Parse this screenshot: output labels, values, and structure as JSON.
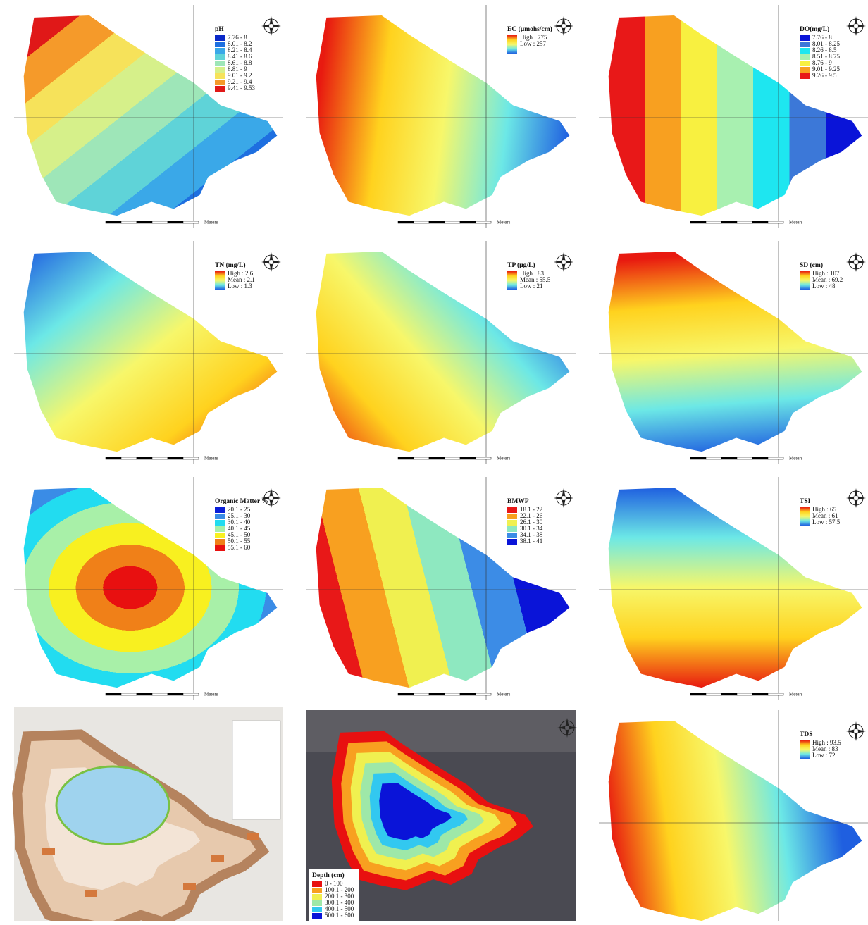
{
  "panels": [
    {
      "title": "pH",
      "legend": [
        "7.76 - 8",
        "8.01 - 8.2",
        "8.21 - 8.4",
        "8.41 - 8.6",
        "8.61 - 8.8",
        "8.81 - 9",
        "9.01 - 9.2",
        "9.21 - 9.4",
        "9.41 - 9.53"
      ],
      "colors": [
        "#0a28c8",
        "#1e6fe0",
        "#3aa8e8",
        "#5fd3d8",
        "#9ee6b8",
        "#d6f08a",
        "#f6e25a",
        "#f59a2a",
        "#e01818"
      ]
    },
    {
      "title": "EC (µmohs/cm)",
      "legend": [
        "High : 775",
        "Low : 257"
      ],
      "colors": [
        "#e81a10",
        "#ffd21e",
        "#f7f76a",
        "#6ce8e6",
        "#1f5fe0"
      ]
    },
    {
      "title": "DO(mg/L)",
      "legend": [
        "7.76 - 8",
        "8.01 - 8.25",
        "8.26 - 8.5",
        "8.51 - 8.75",
        "8.76 - 9",
        "9.01 - 9.25",
        "9.26 - 9.5"
      ],
      "colors": [
        "#0a14d8",
        "#3c78d8",
        "#1ee6f0",
        "#a8f0b0",
        "#f8f040",
        "#f8a020",
        "#e81818"
      ]
    },
    {
      "title": "TN (mg/L)",
      "legend": [
        "High : 2.6",
        "Mean : 2.1",
        "Low : 1.3"
      ],
      "colors": [
        "#e81a10",
        "#ffd21e",
        "#f7f76a",
        "#6ce8e6",
        "#1f5fe0"
      ]
    },
    {
      "title": "TP (µg/L)",
      "legend": [
        "High : 83",
        "Mean : 55.5",
        "Low : 21"
      ],
      "colors": [
        "#e81a10",
        "#ffd21e",
        "#f7f76a",
        "#6ce8e6",
        "#1f5fe0"
      ]
    },
    {
      "title": "SD (cm)",
      "legend": [
        "High : 107",
        "Mean : 69.2",
        "Low : 48"
      ],
      "colors": [
        "#e81a10",
        "#ffd21e",
        "#f7f76a",
        "#6ce8e6",
        "#1f5fe0"
      ]
    },
    {
      "title": "Organic Matter %",
      "legend": [
        "20.1 - 25",
        "25.1 - 30",
        "30.1 - 40",
        "40.1 - 45",
        "45.1 - 50",
        "50.1 - 55",
        "55.1 - 60"
      ],
      "colors": [
        "#0a1ed8",
        "#3a8ce6",
        "#22dcf0",
        "#a8f0a8",
        "#f8f020",
        "#f08018",
        "#e81010"
      ]
    },
    {
      "title": "BMWP",
      "legend": [
        "18.1 - 22",
        "22.1 - 26",
        "26.1 - 30",
        "30.1 - 34",
        "34.1 - 38",
        "38.1 - 41"
      ],
      "colors": [
        "#e81818",
        "#f8a020",
        "#f0f050",
        "#8ee8c0",
        "#3c8ce6",
        "#0a14d8"
      ]
    },
    {
      "title": "TSI",
      "legend": [
        "High : 65",
        "Mean : 61",
        "Low : 57.5"
      ],
      "colors": [
        "#e81a10",
        "#ffd21e",
        "#f7f76a",
        "#6ce8e6",
        "#1f5fe0"
      ]
    },
    {
      "colors": [
        "#b5835e",
        "#e7c9ad",
        "#f3e4d6",
        "#9fd3ee",
        "#7ac142",
        "#d4783c"
      ]
    },
    {
      "title": "Depth (cm)",
      "legend": [
        "0 - 100",
        "100.1 - 200",
        "200.1 - 300",
        "300.1 - 400",
        "400.1 - 500",
        "500.1 - 600"
      ],
      "colors": [
        "#e81010",
        "#f8a020",
        "#f0f050",
        "#9ee8a8",
        "#32c8f0",
        "#0a14d8"
      ]
    },
    {
      "title": "TDS",
      "legend": [
        "High : 93.5",
        "Mean : 83",
        "Low : 72"
      ],
      "colors": [
        "#e81a10",
        "#ffd21e",
        "#f7f76a",
        "#6ce8e6",
        "#1f5fe0"
      ]
    }
  ],
  "scale_unit": "Meters"
}
